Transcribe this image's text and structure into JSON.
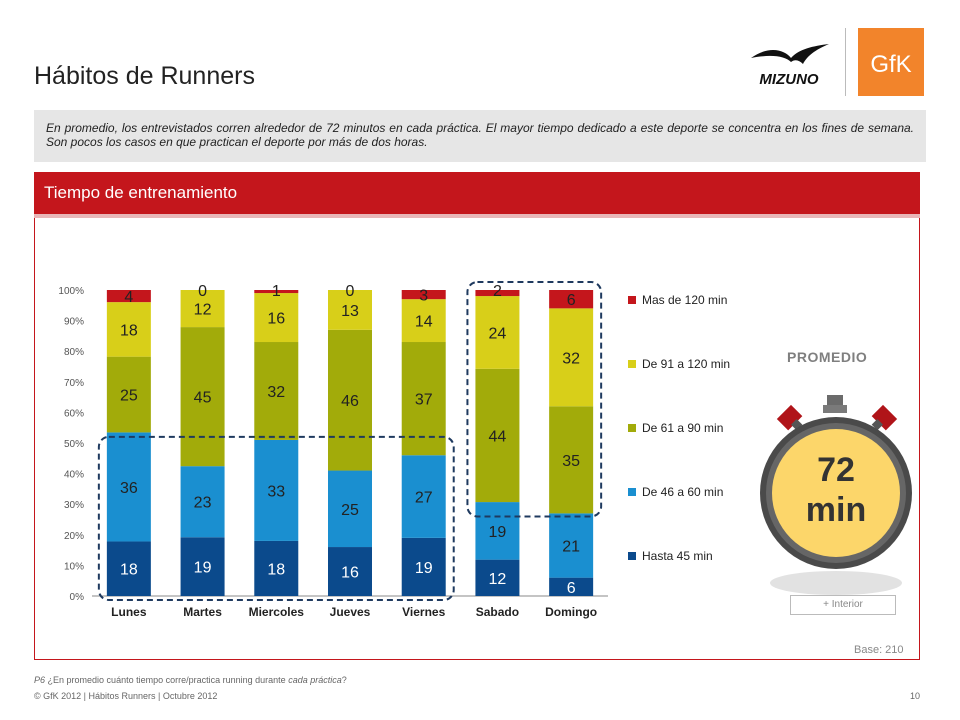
{
  "page": {
    "title": "Hábitos de Runners",
    "intro": "En promedio, los entrevistados corren alrededor de 72 minutos en cada práctica. El mayor tiempo dedicado a este deporte se concentra en los fines de semana. Son pocos los casos en que practican el deporte por más de dos horas.",
    "section_title": "Tiempo de entrenamiento",
    "promedio_label": "PROMEDIO",
    "promedio_value": "72",
    "promedio_unit": "min",
    "interior_label": "+ Interior",
    "base": "Base: 210",
    "question_code": "P6",
    "question_text": "¿En promedio cuánto tiempo corre/practica running durante",
    "question_emph": "cada práctica",
    "question_end": "?",
    "copyright": "© GfK 2012 | Hábitos Runners | Octubre 2012",
    "page_number": "10",
    "logo_left": "MIZUNO",
    "logo_right": "GfK"
  },
  "colors": {
    "brand_red": "#c4161c",
    "gfk_orange": "#f2842b",
    "watch_face": "#fcd66a"
  },
  "chart_data": {
    "type": "bar",
    "stacked": true,
    "categories": [
      "Lunes",
      "Martes",
      "Miercoles",
      "Jueves",
      "Viernes",
      "Sabado",
      "Domingo"
    ],
    "ylim": [
      0,
      100
    ],
    "yticks": [
      "0%",
      "10%",
      "20%",
      "30%",
      "40%",
      "50%",
      "60%",
      "70%",
      "80%",
      "90%",
      "100%"
    ],
    "legend_position": "right",
    "series": [
      {
        "name": "Hasta 45 min",
        "color": "#0b4a8c",
        "values": [
          18,
          19,
          18,
          16,
          19,
          12,
          6
        ]
      },
      {
        "name": "De 46 a 60 min",
        "color": "#1a8fd0",
        "values": [
          36,
          23,
          33,
          25,
          27,
          19,
          21
        ]
      },
      {
        "name": "De 61 a 90 min",
        "color": "#a2ab0a",
        "values": [
          25,
          45,
          32,
          46,
          37,
          44,
          35
        ]
      },
      {
        "name": "De 91 a 120 min",
        "color": "#d8cf19",
        "values": [
          18,
          12,
          16,
          13,
          14,
          24,
          32
        ]
      },
      {
        "name": "Mas de 120 min",
        "color": "#c4161c",
        "values": [
          4,
          0,
          1,
          0,
          3,
          2,
          6
        ]
      }
    ]
  }
}
